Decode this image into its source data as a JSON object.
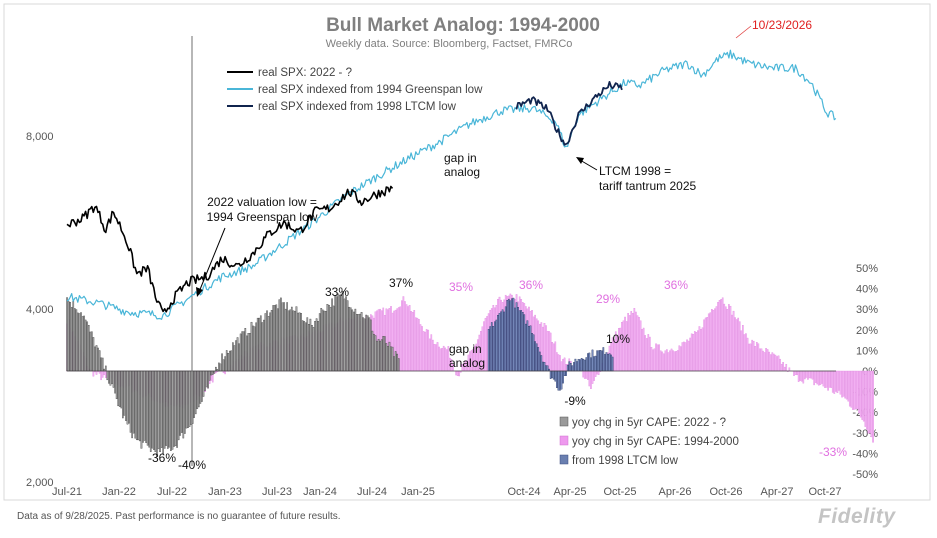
{
  "footnote": "Data as of 9/28/2025. Past performance is no guarantee of future results.",
  "logo": "Fidelity",
  "chart_data": {
    "type": "line",
    "title": "Bull Market Analog: 1994-2000",
    "subtitle": "Weekly data.  Source: Bloomberg, Factset, FMRCo",
    "y_left": {
      "scale": "log",
      "ticks": [
        "2,000",
        "4,000",
        "8,000"
      ],
      "range": [
        2000,
        13000
      ]
    },
    "y_right": {
      "ticks": [
        "50%",
        "40%",
        "30%",
        "20%",
        "10%",
        "0%",
        "-10%",
        "-20%",
        "-30%",
        "-40%",
        "-50%"
      ],
      "range": [
        -50,
        50
      ]
    },
    "x_ticks_top": [
      "Jul-21",
      "Jan-22",
      "Jul-22",
      "Jan-23",
      "Jul-23",
      "Jan-24",
      "Jul-24",
      "Jan-25"
    ],
    "x_ticks_bottom": [
      "Oct-24",
      "Apr-25",
      "Oct-25",
      "Apr-26",
      "Oct-26",
      "Apr-27",
      "Oct-27"
    ],
    "legend_lines": [
      {
        "label": "real SPX: 2022 - ?",
        "color": "#000000"
      },
      {
        "label": "real SPX indexed from 1994 Greenspan low",
        "color": "#4ab6d8"
      },
      {
        "label": "real SPX indexed from 1998 LTCM low",
        "color": "#10244e"
      }
    ],
    "legend_bars": [
      {
        "label": "yoy chg in 5yr CAPE: 2022 - ?",
        "color": "#9a9a9a"
      },
      {
        "label": "yoy chg in 5yr CAPE: 1994-2000",
        "color": "#ee99ee"
      },
      {
        "label": "from 1998 LTCM low",
        "color": "#6a7fb0"
      }
    ],
    "series_keypoints": {
      "real_spx_2022": [
        [
          0,
          5600
        ],
        [
          10,
          5750
        ],
        [
          18,
          6050
        ],
        [
          25,
          5500
        ],
        [
          30,
          5900
        ],
        [
          38,
          5300
        ],
        [
          45,
          4600
        ],
        [
          52,
          4700
        ],
        [
          57,
          4200
        ],
        [
          62,
          3900
        ],
        [
          68,
          4150
        ],
        [
          78,
          4450
        ],
        [
          90,
          4550
        ],
        [
          100,
          4900
        ],
        [
          110,
          4750
        ],
        [
          120,
          5000
        ],
        [
          130,
          5400
        ],
        [
          140,
          5650
        ],
        [
          150,
          5450
        ],
        [
          160,
          5900
        ],
        [
          170,
          6000
        ],
        [
          182,
          6400
        ],
        [
          190,
          6150
        ],
        [
          200,
          6350
        ],
        [
          210,
          6500
        ]
      ],
      "real_spx_1994": [
        [
          0,
          4200
        ],
        [
          20,
          4100
        ],
        [
          40,
          3950
        ],
        [
          62,
          3900
        ],
        [
          80,
          4200
        ],
        [
          100,
          4550
        ],
        [
          120,
          4750
        ],
        [
          140,
          5200
        ],
        [
          160,
          5700
        ],
        [
          180,
          6300
        ],
        [
          200,
          6800
        ],
        [
          220,
          7300
        ],
        [
          240,
          7800
        ],
        [
          260,
          8400
        ],
        [
          280,
          8850
        ],
        [
          300,
          8950
        ],
        [
          315,
          8500
        ],
        [
          322,
          7600
        ],
        [
          330,
          8700
        ],
        [
          345,
          9300
        ],
        [
          360,
          9900
        ],
        [
          370,
          9800
        ],
        [
          385,
          10400
        ],
        [
          400,
          10700
        ],
        [
          410,
          10200
        ],
        [
          420,
          10900
        ],
        [
          428,
          11100
        ],
        [
          440,
          10700
        ],
        [
          455,
          10500
        ],
        [
          470,
          10500
        ],
        [
          480,
          9900
        ],
        [
          490,
          8800
        ],
        [
          496,
          8600
        ]
      ],
      "real_spx_1998": [
        [
          290,
          9000
        ],
        [
          300,
          9250
        ],
        [
          310,
          8900
        ],
        [
          316,
          8200
        ],
        [
          322,
          7700
        ],
        [
          330,
          8700
        ],
        [
          340,
          9300
        ],
        [
          350,
          9800
        ],
        [
          358,
          9700
        ]
      ]
    },
    "bars_2022_keypoints": [
      [
        0,
        35
      ],
      [
        10,
        28
      ],
      [
        20,
        10
      ],
      [
        30,
        -10
      ],
      [
        38,
        -25
      ],
      [
        45,
        -34
      ],
      [
        52,
        -37
      ],
      [
        60,
        -40
      ],
      [
        70,
        -36
      ],
      [
        80,
        -25
      ],
      [
        90,
        -10
      ],
      [
        98,
        5
      ],
      [
        110,
        15
      ],
      [
        120,
        22
      ],
      [
        132,
        30
      ],
      [
        138,
        33
      ],
      [
        150,
        28
      ],
      [
        158,
        22
      ],
      [
        165,
        30
      ],
      [
        172,
        34
      ],
      [
        178,
        37
      ],
      [
        186,
        30
      ],
      [
        195,
        25
      ],
      [
        200,
        15
      ],
      [
        205,
        15
      ],
      [
        214,
        5
      ]
    ],
    "bars_1994_keypoints": [
      [
        0,
        25
      ],
      [
        15,
        0
      ],
      [
        25,
        -4
      ],
      [
        40,
        -8
      ],
      [
        55,
        -13
      ],
      [
        65,
        -17
      ],
      [
        75,
        -17
      ],
      [
        88,
        -10
      ],
      [
        95,
        -3
      ],
      [
        105,
        2
      ],
      [
        115,
        8
      ],
      [
        125,
        12
      ],
      [
        135,
        14
      ],
      [
        150,
        16
      ],
      [
        165,
        20
      ],
      [
        180,
        25
      ],
      [
        190,
        25
      ],
      [
        200,
        28
      ],
      [
        210,
        30
      ],
      [
        218,
        35
      ],
      [
        226,
        25
      ],
      [
        236,
        15
      ],
      [
        246,
        10
      ],
      [
        252,
        -2
      ],
      [
        262,
        10
      ],
      [
        270,
        25
      ],
      [
        280,
        35
      ],
      [
        290,
        36
      ],
      [
        300,
        28
      ],
      [
        310,
        20
      ],
      [
        320,
        5
      ],
      [
        330,
        3
      ],
      [
        338,
        -9
      ],
      [
        346,
        5
      ],
      [
        352,
        15
      ],
      [
        360,
        25
      ],
      [
        366,
        29
      ],
      [
        372,
        20
      ],
      [
        378,
        12
      ],
      [
        386,
        10
      ],
      [
        396,
        12
      ],
      [
        406,
        18
      ],
      [
        416,
        30
      ],
      [
        422,
        36
      ],
      [
        430,
        28
      ],
      [
        440,
        15
      ],
      [
        450,
        10
      ],
      [
        460,
        5
      ],
      [
        470,
        -3
      ],
      [
        480,
        -5
      ],
      [
        490,
        -8
      ],
      [
        500,
        -12
      ],
      [
        508,
        -18
      ],
      [
        514,
        -24
      ],
      [
        520,
        -33
      ]
    ],
    "bars_ltcm_keypoints": [
      [
        272,
        20
      ],
      [
        280,
        28
      ],
      [
        286,
        36
      ],
      [
        293,
        28
      ],
      [
        300,
        20
      ],
      [
        306,
        8
      ],
      [
        312,
        -2
      ],
      [
        318,
        -9
      ],
      [
        324,
        3
      ],
      [
        330,
        6
      ],
      [
        336,
        8
      ],
      [
        342,
        9
      ],
      [
        348,
        10
      ],
      [
        352,
        8
      ]
    ],
    "labels": [
      "33%",
      "37%",
      "-36%",
      "-40%",
      "35%",
      "36%",
      "29%",
      "10%",
      "-9%",
      "36%",
      "-33%"
    ],
    "annotations": {
      "valuation_low": "2022 valuation low = 1994 Greenspan  low",
      "gap_top": "gap in analog",
      "gap_bottom": "gap in analog",
      "ltcm": "LTCM 1998 = tariff tantrum 2025",
      "peak_date": "10/23/2026"
    }
  }
}
